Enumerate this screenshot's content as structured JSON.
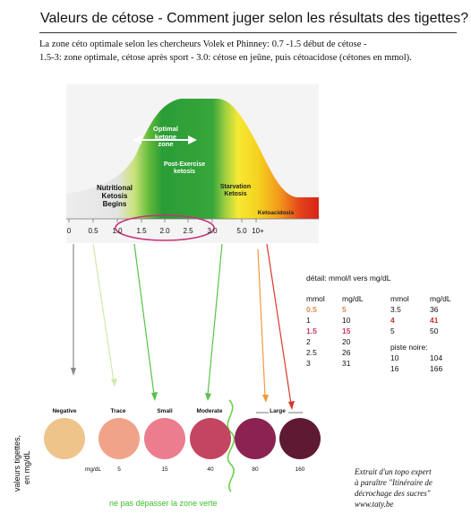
{
  "header": {
    "title": "Valeurs de cétose - Comment juger selon les résultats des tigettes?"
  },
  "intro": {
    "line1": "La zone céto optimale selon les chercheurs Volek et Phinney: 0.7 -1.5 début de cétose -",
    "line2": "1.5-3: zone  optimale, cétose après sport - 3.0: cétose en jeûne, puis cétoacidose (cétones en mmol)."
  },
  "chart": {
    "optimal_label": [
      "Optimal",
      "ketone",
      "zone"
    ],
    "post_exercise": [
      "Post-Exercise",
      "ketosis"
    ],
    "nutritional": [
      "Nutritional",
      "Ketosis",
      "Begins"
    ],
    "starvation": [
      "Starvation",
      "Ketosis"
    ],
    "ketoacidosis": "Ketoacidosis",
    "ticks": [
      "0",
      "0.5",
      "1.0",
      "1.5",
      "2.0",
      "2.5",
      "3.0",
      "5.0",
      "10+"
    ],
    "colors": {
      "grey": "#e9e9e9",
      "green_light": "#a9d84a",
      "green": "#2aa13a",
      "yellow": "#f7e83a",
      "orange": "#f29a1a",
      "red": "#d8261a",
      "ellipse": "#c8327a"
    }
  },
  "detail": {
    "heading": "détail:  mmol/l vers mg/dL",
    "col_headers": [
      "mmol",
      "mg/dL",
      "mmol",
      "mg/dL"
    ],
    "left_rows": [
      [
        "0.5",
        "5"
      ],
      [
        "1",
        "10"
      ],
      [
        "1.5",
        "15"
      ],
      [
        "2",
        "20"
      ],
      [
        "2.5",
        "26"
      ],
      [
        "3",
        "31"
      ]
    ],
    "right_rows": [
      [
        "3.5",
        "36"
      ],
      [
        "4",
        "41"
      ],
      [
        "5",
        "50"
      ]
    ],
    "piste_label": "piste noire:",
    "piste_rows": [
      [
        "10",
        "104"
      ],
      [
        "16",
        "166"
      ]
    ]
  },
  "strip": {
    "y_label": [
      "valeurs tigettes,",
      "en mg/dL"
    ],
    "labels": [
      "Negative",
      "Trace",
      "Small",
      "Moderate",
      "Large"
    ],
    "mg_label": "mg/dL",
    "values": [
      "5",
      "15",
      "40",
      "80",
      "160"
    ],
    "dot_colors": [
      "#eec48b",
      "#f1a38a",
      "#ec7d8f",
      "#c44560",
      "#8b2252",
      "#5e1a33"
    ]
  },
  "source": {
    "lines": [
      "Extrait d'un topo expert",
      "à paraître \"Itinéraire de",
      "décrochage des sucres\"",
      "www.taty.be"
    ]
  },
  "note": "ne pas dépasser la zone verte"
}
